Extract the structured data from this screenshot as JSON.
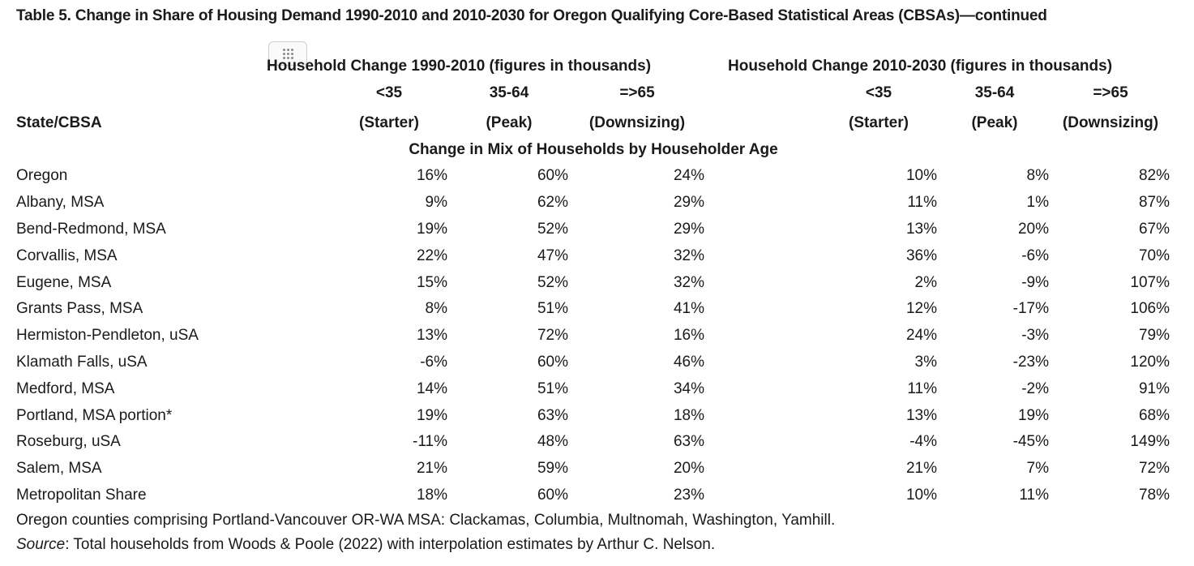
{
  "title": "Table 5. Change in Share of Housing Demand 1990-2010 and 2010-2030 for Oregon Qualifying Core-Based Statistical Areas (CBSAs)—continued",
  "group_headers": {
    "period1": "Household Change 1990-2010 (figures in thousands)",
    "period2": "Household Change 2010-2030 (figures in thousands)"
  },
  "columns": [
    {
      "age": "<35",
      "label": "(Starter)"
    },
    {
      "age": "35-64",
      "label": "(Peak)"
    },
    {
      "age": "=>65",
      "label": "(Downsizing)"
    },
    {
      "age": "<35",
      "label": "(Starter)"
    },
    {
      "age": "35-64",
      "label": "(Peak)"
    },
    {
      "age": "=>65",
      "label": "(Downsizing)"
    }
  ],
  "state_header": "State/CBSA",
  "section_header": "Change in Mix of Households by Householder Age",
  "rows": [
    {
      "name": "Oregon",
      "values": [
        "16%",
        "60%",
        "24%",
        "10%",
        "8%",
        "82%"
      ]
    },
    {
      "name": "Albany, MSA",
      "values": [
        "9%",
        "62%",
        "29%",
        "11%",
        "1%",
        "87%"
      ]
    },
    {
      "name": "Bend-Redmond, MSA",
      "values": [
        "19%",
        "52%",
        "29%",
        "13%",
        "20%",
        "67%"
      ]
    },
    {
      "name": "Corvallis, MSA",
      "values": [
        "22%",
        "47%",
        "32%",
        "36%",
        "-6%",
        "70%"
      ]
    },
    {
      "name": "Eugene, MSA",
      "values": [
        "15%",
        "52%",
        "32%",
        "2%",
        "-9%",
        "107%"
      ]
    },
    {
      "name": "Grants Pass, MSA",
      "values": [
        "8%",
        "51%",
        "41%",
        "12%",
        "-17%",
        "106%"
      ]
    },
    {
      "name": "Hermiston-Pendleton, uSA",
      "values": [
        "13%",
        "72%",
        "16%",
        "24%",
        "-3%",
        "79%"
      ]
    },
    {
      "name": "Klamath Falls, uSA",
      "values": [
        "-6%",
        "60%",
        "46%",
        "3%",
        "-23%",
        "120%"
      ]
    },
    {
      "name": "Medford, MSA",
      "values": [
        "14%",
        "51%",
        "34%",
        "11%",
        "-2%",
        "91%"
      ]
    },
    {
      "name": "Portland, MSA portion*",
      "values": [
        "19%",
        "63%",
        "18%",
        "13%",
        "19%",
        "68%"
      ]
    },
    {
      "name": "Roseburg, uSA",
      "values": [
        "-11%",
        "48%",
        "63%",
        "-4%",
        "-45%",
        "149%"
      ]
    },
    {
      "name": "Salem, MSA",
      "values": [
        "21%",
        "59%",
        "20%",
        "21%",
        "7%",
        "72%"
      ]
    },
    {
      "name": "Metropolitan Share",
      "values": [
        "18%",
        "60%",
        "23%",
        "10%",
        "11%",
        "78%"
      ]
    }
  ],
  "footnote": "Oregon counties comprising Portland-Vancouver OR-WA MSA: Clackamas, Columbia, Multnomah, Washington, Yamhill.",
  "source": {
    "label": "Source",
    "text": ": Total households from Woods & Poole (2022) with interpolation estimates by Arthur C. Nelson."
  },
  "icons": {
    "drag_handle": "drag-handle-icon"
  }
}
